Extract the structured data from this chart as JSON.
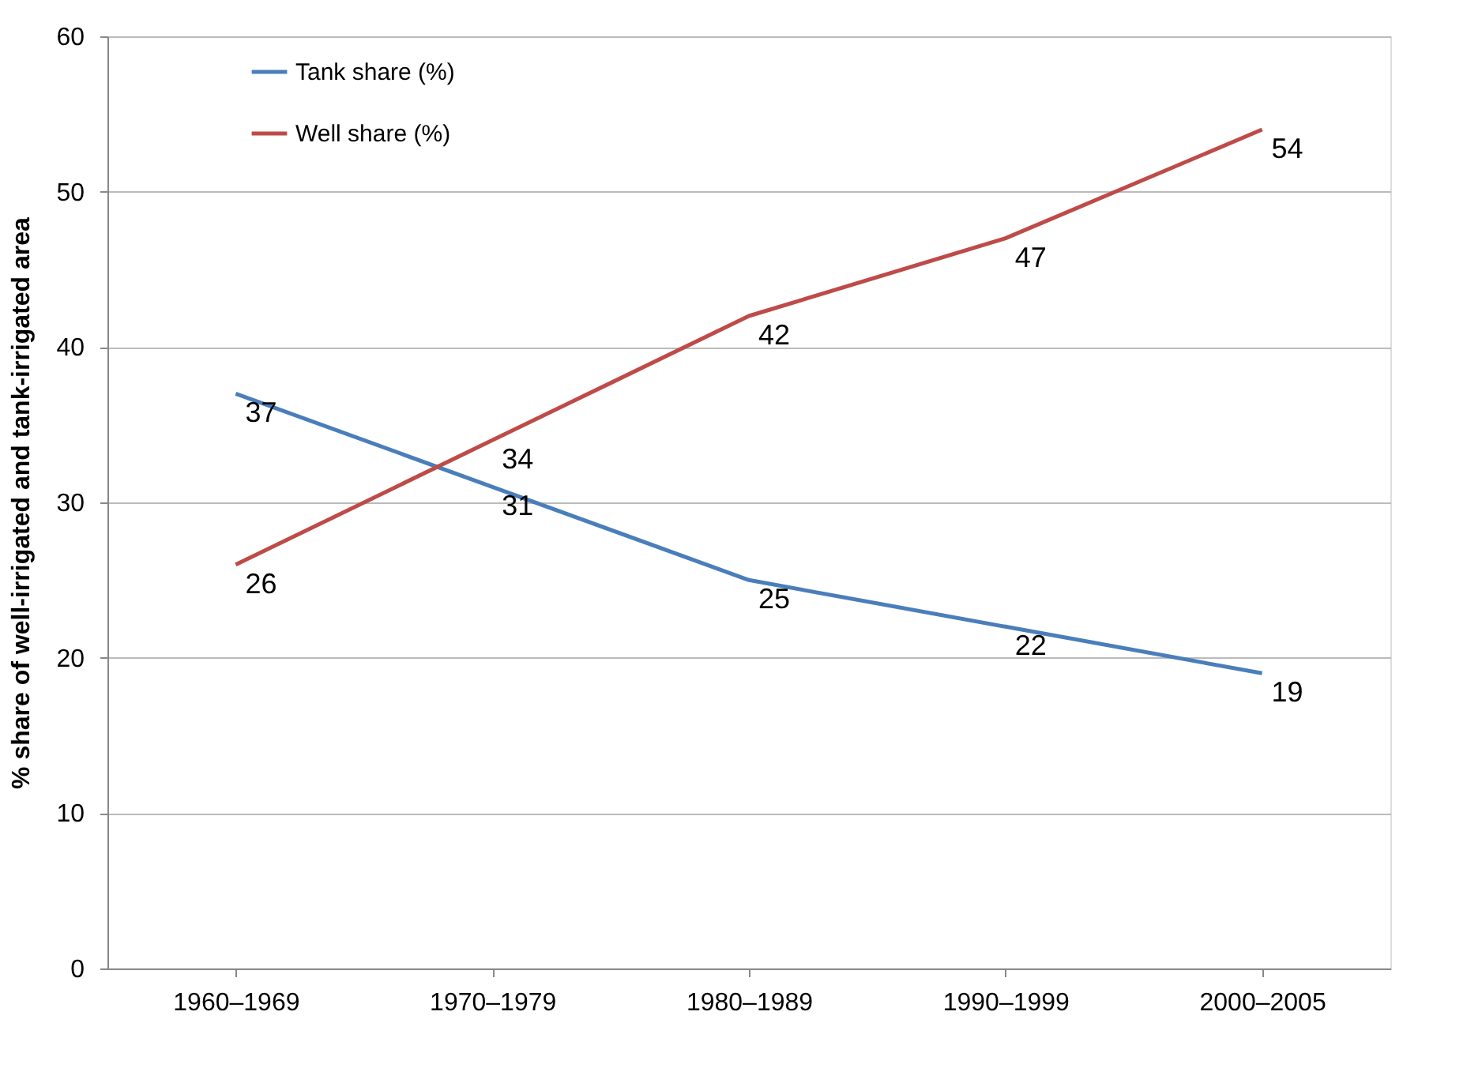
{
  "chart_data": {
    "type": "line",
    "ylabel": "% share of well-irrigated and tank-irrigated area",
    "categories": [
      "1960–1969",
      "1970–1979",
      "1980–1989",
      "1990–1999",
      "2000–2005"
    ],
    "series": [
      {
        "name": "Tank share (%)",
        "color": "#4a7ebb",
        "values": [
          37,
          31,
          25,
          22,
          19
        ]
      },
      {
        "name": "Well share (%)",
        "color": "#be4b48",
        "values": [
          26,
          34,
          42,
          47,
          54
        ]
      }
    ],
    "ylim": [
      0,
      60
    ],
    "yticks": [
      0,
      10,
      20,
      30,
      40,
      50,
      60
    ],
    "grid": "y",
    "legend": "top left",
    "data_labels": true,
    "marker": "none",
    "line_style": "solid"
  }
}
